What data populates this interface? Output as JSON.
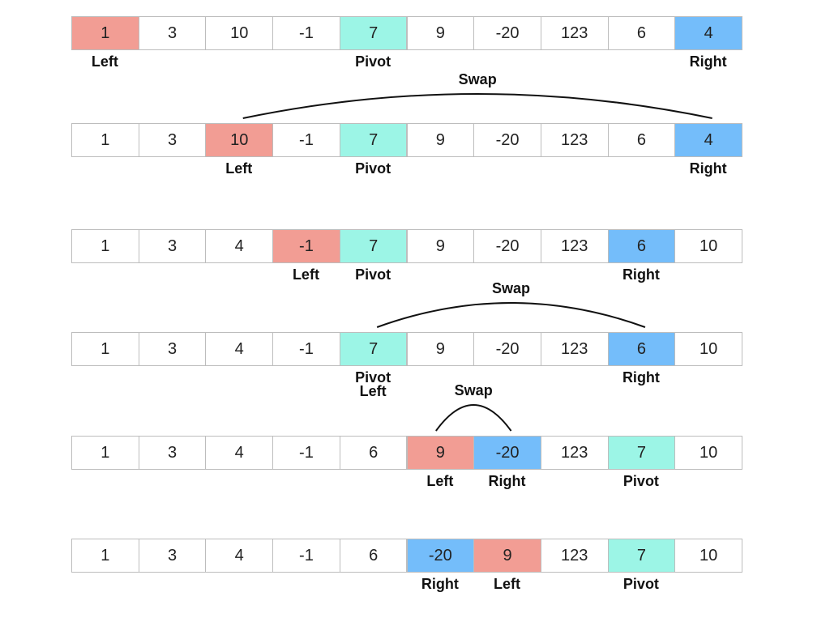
{
  "colors": {
    "left": "#f29d94",
    "pivot": "#9cf5e6",
    "right": "#74bdfa",
    "plain": "#ffffff"
  },
  "swap_text": "Swap",
  "rows": [
    {
      "values": [
        "1",
        "3",
        "10",
        "-1",
        "7",
        "9",
        "-20",
        "123",
        "6",
        "4"
      ],
      "highlights": {
        "0": "left",
        "4": "pivot",
        "9": "right"
      },
      "labels": [
        {
          "col": 0,
          "text": "Left"
        },
        {
          "col": 4,
          "text": "Pivot"
        },
        {
          "col": 9,
          "text": "Right"
        }
      ],
      "swap": null
    },
    {
      "values": [
        "1",
        "3",
        "10",
        "-1",
        "7",
        "9",
        "-20",
        "123",
        "6",
        "4"
      ],
      "highlights": {
        "2": "left",
        "4": "pivot",
        "9": "right"
      },
      "labels": [
        {
          "col": 2,
          "text": "Left"
        },
        {
          "col": 4,
          "text": "Pivot"
        },
        {
          "col": 9,
          "text": "Right"
        }
      ],
      "swap": {
        "from": 2,
        "to": 9
      }
    },
    {
      "values": [
        "1",
        "3",
        "4",
        "-1",
        "7",
        "9",
        "-20",
        "123",
        "6",
        "10"
      ],
      "highlights": {
        "3": "left",
        "4": "pivot",
        "8": "right"
      },
      "labels": [
        {
          "col": 3,
          "text": "Left"
        },
        {
          "col": 4,
          "text": "Pivot"
        },
        {
          "col": 8,
          "text": "Right"
        }
      ],
      "swap": null
    },
    {
      "values": [
        "1",
        "3",
        "4",
        "-1",
        "7",
        "9",
        "-20",
        "123",
        "6",
        "10"
      ],
      "highlights": {
        "4": "pivot",
        "8": "right"
      },
      "labels": [
        {
          "col": 4,
          "text": "Pivot"
        },
        {
          "col": 4,
          "text": "Left",
          "line": 2
        },
        {
          "col": 8,
          "text": "Right"
        }
      ],
      "swap": {
        "from": 4,
        "to": 8
      }
    },
    {
      "values": [
        "1",
        "3",
        "4",
        "-1",
        "6",
        "9",
        "-20",
        "123",
        "7",
        "10"
      ],
      "highlights": {
        "5": "left",
        "6": "right",
        "8": "pivot"
      },
      "labels": [
        {
          "col": 5,
          "text": "Left"
        },
        {
          "col": 6,
          "text": "Right"
        },
        {
          "col": 8,
          "text": "Pivot"
        }
      ],
      "swap": {
        "from": 5,
        "to": 6
      }
    },
    {
      "values": [
        "1",
        "3",
        "4",
        "-1",
        "6",
        "-20",
        "9",
        "123",
        "7",
        "10"
      ],
      "highlights": {
        "5": "right",
        "6": "left",
        "8": "pivot"
      },
      "labels": [
        {
          "col": 5,
          "text": "Right"
        },
        {
          "col": 6,
          "text": "Left"
        },
        {
          "col": 8,
          "text": "Pivot"
        }
      ],
      "swap": null
    }
  ]
}
